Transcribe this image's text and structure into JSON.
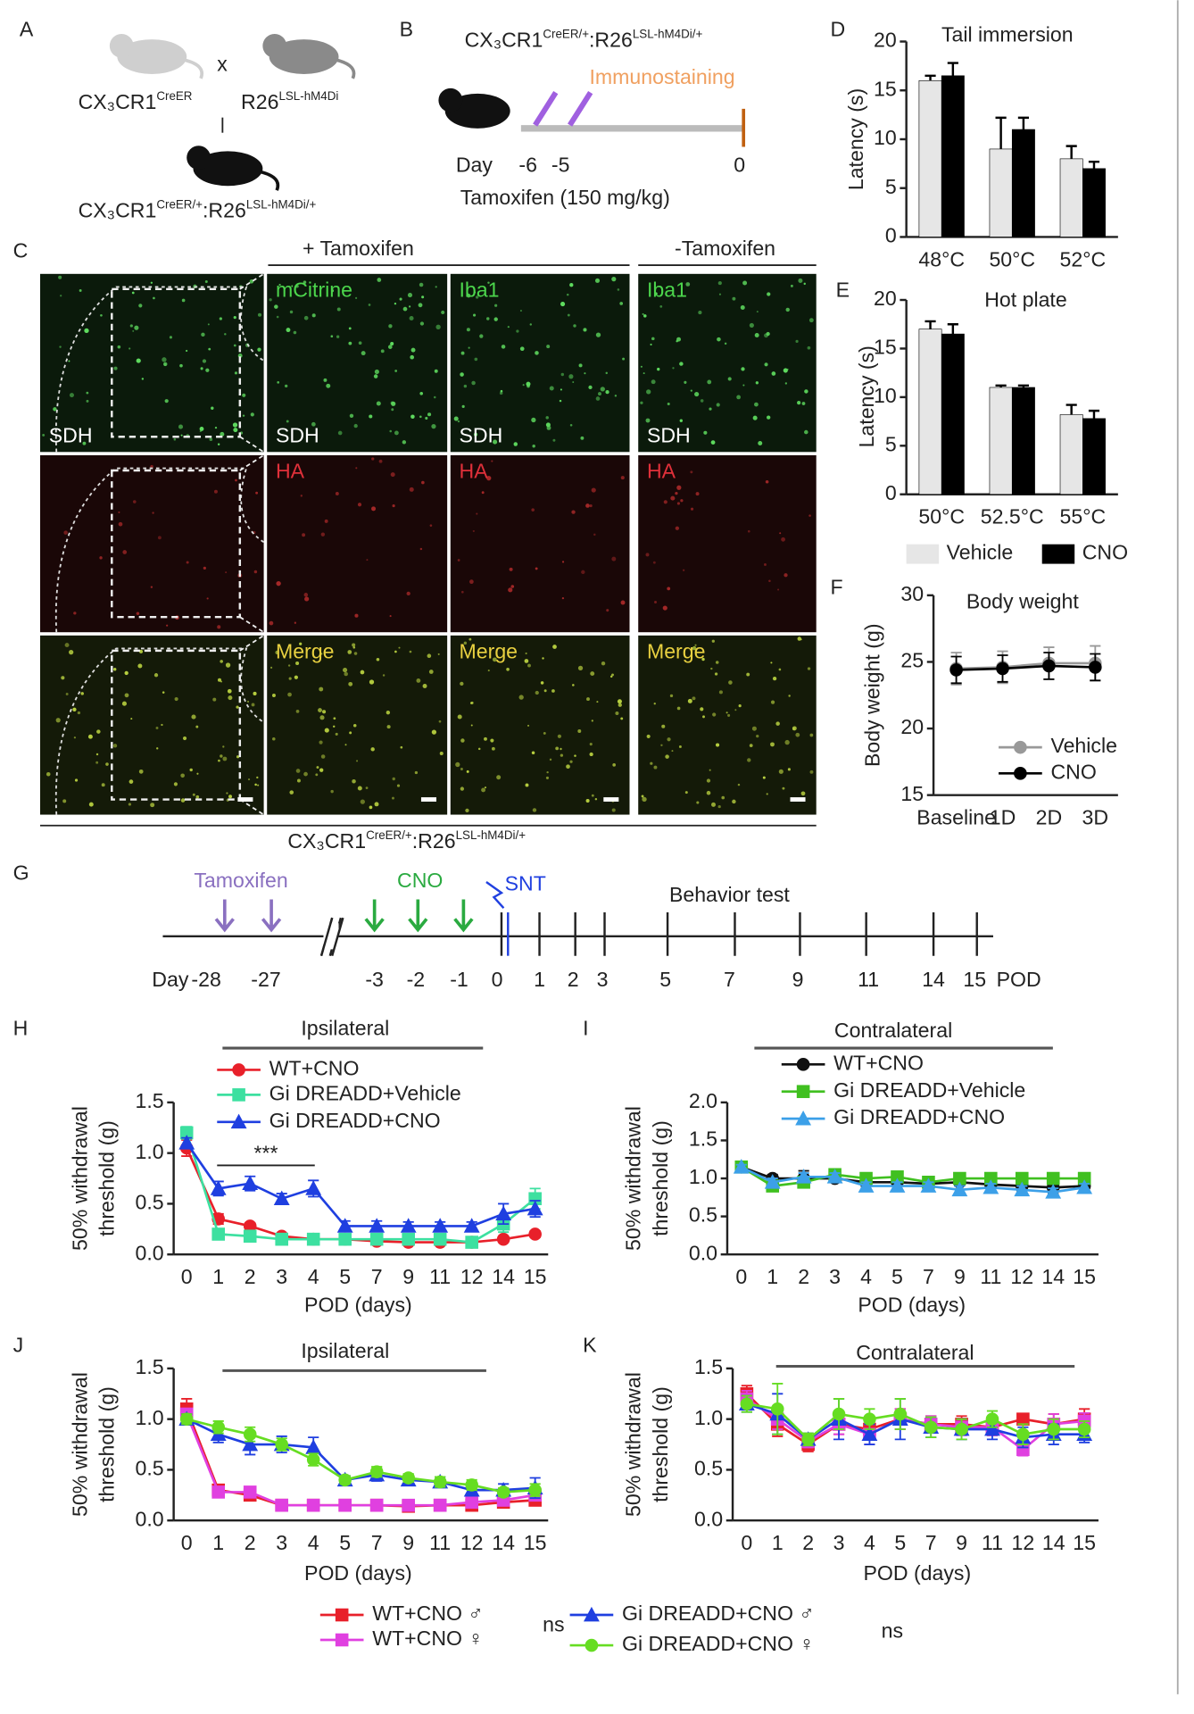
{
  "figure": {
    "panel_a": {
      "label": "A",
      "parent1": {
        "gene": "CX₃CR1",
        "allele": "CreER"
      },
      "cross": "x",
      "parent2": {
        "gene": "R26",
        "allele": "LSL-hM4Di"
      },
      "offspring": {
        "gene1": "CX₃CR1",
        "allele1": "CreER/+",
        "gene2": ":R26",
        "allele2": "LSL-hM4Di/+"
      }
    },
    "panel_b": {
      "label": "B",
      "genotype": {
        "gene1": "CX₃CR1",
        "allele1": "CreER/+",
        "gene2": ":R26",
        "allele2": "LSL-hM4Di/+"
      },
      "annotation": "Immunostaining",
      "day_label": "Day",
      "days": [
        "-6",
        "-5"
      ],
      "end_day": "0",
      "treatment": "Tamoxifen (150 mg/kg)"
    },
    "panel_c": {
      "label": "C",
      "group_plus": "+ Tamoxifen",
      "group_minus": "-Tamoxifen",
      "region": "SDH",
      "rows": [
        [
          "mCitrine",
          "Iba1",
          "Iba1"
        ],
        [
          "HA",
          "HA",
          "HA"
        ],
        [
          "Merge",
          "Merge",
          "Merge"
        ]
      ],
      "genotype": {
        "gene1": "CX₃CR1",
        "allele1": "CreER/+",
        "gene2": ":R26",
        "allele2": "LSL-hM4Di/+"
      }
    },
    "panel_g": {
      "label": "G",
      "tamoxifen": "Tamoxifen",
      "cno": "CNO",
      "snt": "SNT",
      "behavior": "Behavior test",
      "day_label": "Day",
      "days": [
        "-28",
        "-27",
        "-3",
        "-2",
        "-1",
        "0",
        "1",
        "2",
        "3",
        "5",
        "7",
        "9",
        "11",
        "14",
        "15"
      ],
      "unit": "POD"
    }
  },
  "chart_data": [
    {
      "panel": "D",
      "type": "bar",
      "title": "Tail immersion",
      "ylabel": [
        "Latency (s)"
      ],
      "categories": [
        "48°C",
        "50°C",
        "52°C"
      ],
      "ylim": [
        0,
        20
      ],
      "yticks": [
        0,
        5,
        10,
        15,
        20
      ],
      "series": [
        {
          "color": "#e6e6e6",
          "values": [
            16,
            9,
            8
          ],
          "errors": [
            0.5,
            3.2,
            1.3
          ]
        },
        {
          "color": "#000000",
          "values": [
            16.5,
            11,
            7
          ],
          "errors": [
            1.3,
            1.2,
            0.7
          ]
        }
      ]
    },
    {
      "panel": "E",
      "type": "bar",
      "title": "Hot plate",
      "ylabel": [
        "Latency (s)"
      ],
      "categories": [
        "50°C",
        "52.5°C",
        "55°C"
      ],
      "ylim": [
        0,
        20
      ],
      "yticks": [
        0,
        5,
        10,
        15,
        20
      ],
      "series": [
        {
          "name": "Vehicle",
          "color": "#e6e6e6",
          "values": [
            17,
            11,
            8.2
          ],
          "errors": [
            0.8,
            0.2,
            1
          ]
        },
        {
          "name": "CNO",
          "color": "#000000",
          "values": [
            16.5,
            11,
            7.8
          ],
          "errors": [
            1,
            0.2,
            0.8
          ]
        }
      ]
    },
    {
      "panel": "F",
      "type": "line",
      "title": "Body weight",
      "ylabel": [
        "Body weight (g)"
      ],
      "categories": [
        "Baseline",
        "1D",
        "2D",
        "3D"
      ],
      "ylim": [
        15,
        30
      ],
      "yticks": [
        15,
        20,
        25,
        30
      ],
      "series": [
        {
          "name": "Vehicle",
          "color": "#999999",
          "marker": "circle",
          "values": [
            24.5,
            24.6,
            24.9,
            24.9
          ],
          "errors": [
            1.2,
            1.2,
            1.2,
            1.3
          ]
        },
        {
          "name": "CNO",
          "color": "#000000",
          "marker": "circle",
          "values": [
            24.4,
            24.5,
            24.7,
            24.6
          ],
          "errors": [
            1,
            1,
            1,
            1
          ]
        }
      ]
    },
    {
      "panel": "H",
      "type": "line",
      "title": "Ipsilateral",
      "ylabel": [
        "50% withdrawal",
        "threshold (g)"
      ],
      "xlabel": "POD (days)",
      "annotation": "***",
      "categories": [
        0,
        1,
        2,
        3,
        4,
        5,
        7,
        9,
        11,
        12,
        14,
        15
      ],
      "ylim": [
        0,
        1.5
      ],
      "yticks": [
        {
          "value": 0,
          "label": "0.0"
        },
        {
          "value": 0.5,
          "label": "0.5"
        },
        {
          "value": 1,
          "label": "1.0"
        },
        {
          "value": 1.5,
          "label": "1.5"
        }
      ],
      "series": [
        {
          "name": "WT+CNO",
          "color": "#e8202a",
          "marker": "circle",
          "values": [
            1.05,
            0.35,
            0.28,
            0.18,
            0.15,
            0.15,
            0.13,
            0.12,
            0.12,
            0.12,
            0.15,
            0.2
          ],
          "errors": [
            0.08,
            0.05,
            0.03,
            0.02,
            0.02,
            0.02,
            0.02,
            0.02,
            0.02,
            0.02,
            0.03,
            0.03
          ]
        },
        {
          "name": "Gi DREADD+Vehicle",
          "color": "#3de0a0",
          "marker": "square",
          "values": [
            1.2,
            0.2,
            0.18,
            0.15,
            0.15,
            0.15,
            0.15,
            0.15,
            0.15,
            0.12,
            0.3,
            0.55
          ],
          "errors": [
            0.06,
            0.04,
            0.03,
            0.02,
            0.02,
            0.02,
            0.02,
            0.02,
            0.02,
            0.02,
            0.08,
            0.1
          ]
        },
        {
          "name": "Gi DREADD+CNO",
          "color": "#1f3fe0",
          "marker": "triangle",
          "values": [
            1.1,
            0.65,
            0.7,
            0.55,
            0.65,
            0.28,
            0.28,
            0.28,
            0.28,
            0.28,
            0.4,
            0.45
          ],
          "errors": [
            0.05,
            0.07,
            0.07,
            0.05,
            0.08,
            0.05,
            0.05,
            0.04,
            0.04,
            0.04,
            0.1,
            0.08
          ]
        }
      ]
    },
    {
      "panel": "I",
      "type": "line",
      "title": "Contralateral",
      "ylabel": [
        "50% withdrawal",
        "threshold (g)"
      ],
      "xlabel": "POD (days)",
      "categories": [
        0,
        1,
        2,
        3,
        4,
        5,
        7,
        9,
        11,
        12,
        14,
        15
      ],
      "ylim": [
        0,
        2
      ],
      "yticks": [
        {
          "value": 0,
          "label": "0.0"
        },
        {
          "value": 0.5,
          "label": "0.5"
        },
        {
          "value": 1,
          "label": "1.0"
        },
        {
          "value": 1.5,
          "label": "1.5"
        },
        {
          "value": 2,
          "label": "2.0"
        }
      ],
      "series": [
        {
          "name": "WT+CNO",
          "color": "#111111",
          "marker": "circle",
          "values": [
            1.15,
            1.0,
            1.0,
            1.0,
            0.95,
            0.95,
            0.93,
            0.95,
            0.92,
            0.9,
            0.88,
            0.9
          ],
          "errors": [
            0.05,
            0.05,
            0.1,
            0.05,
            0.05,
            0.05,
            0.06,
            0.05,
            0.05,
            0.06,
            0.08,
            0.05
          ]
        },
        {
          "name": "Gi DREADD+Vehicle",
          "color": "#40c020",
          "marker": "square",
          "values": [
            1.15,
            0.9,
            0.95,
            1.05,
            1.0,
            1.02,
            0.95,
            1.0,
            1.0,
            1.0,
            1.0,
            1.0
          ],
          "errors": [
            0.03,
            0.05,
            0.05,
            0.05,
            0.05,
            0.05,
            0.05,
            0.05,
            0.05,
            0.05,
            0.05,
            0.05
          ]
        },
        {
          "name": "Gi DREADD+CNO",
          "color": "#3ca0e8",
          "marker": "triangle",
          "values": [
            1.15,
            0.95,
            1.02,
            1.02,
            0.9,
            0.9,
            0.9,
            0.85,
            0.88,
            0.85,
            0.82,
            0.88
          ],
          "errors": [
            0.03,
            0.05,
            0.05,
            0.05,
            0.05,
            0.05,
            0.05,
            0.05,
            0.05,
            0.05,
            0.05,
            0.05
          ]
        }
      ]
    },
    {
      "panel": "J",
      "type": "line",
      "title": "Ipsilateral",
      "ylabel": [
        "50% withdrawal",
        "threshold (g)"
      ],
      "xlabel": "POD (days)",
      "legend_notes": [
        "ns",
        "ns"
      ],
      "categories": [
        0,
        1,
        2,
        3,
        4,
        5,
        7,
        9,
        11,
        12,
        14,
        15
      ],
      "ylim": [
        0,
        1.5
      ],
      "yticks": [
        {
          "value": 0,
          "label": "0.0"
        },
        {
          "value": 0.5,
          "label": "0.5"
        },
        {
          "value": 1,
          "label": "1.0"
        },
        {
          "value": 1.5,
          "label": "1.5"
        }
      ],
      "series": [
        {
          "name": "WT+CNO ♂",
          "color": "#e8202a",
          "marker": "square",
          "values": [
            1.1,
            0.3,
            0.25,
            0.15,
            0.15,
            0.15,
            0.15,
            0.14,
            0.15,
            0.15,
            0.18,
            0.2
          ],
          "errors": [
            0.1,
            0.05,
            0.05,
            0.02,
            0.02,
            0.02,
            0.02,
            0.02,
            0.02,
            0.02,
            0.03,
            0.03
          ]
        },
        {
          "name": "WT+CNO ♀",
          "color": "#e040e0",
          "marker": "square",
          "values": [
            1.05,
            0.28,
            0.28,
            0.15,
            0.15,
            0.15,
            0.15,
            0.15,
            0.15,
            0.18,
            0.2,
            0.25
          ],
          "errors": [
            0.05,
            0.05,
            0.05,
            0.02,
            0.02,
            0.02,
            0.02,
            0.02,
            0.02,
            0.03,
            0.03,
            0.04
          ]
        },
        {
          "name": "Gi DREADD+CNO ♂",
          "color": "#1f3fe0",
          "marker": "triangle",
          "values": [
            1.0,
            0.85,
            0.75,
            0.75,
            0.72,
            0.4,
            0.45,
            0.4,
            0.38,
            0.3,
            0.3,
            0.32
          ],
          "errors": [
            0.05,
            0.08,
            0.1,
            0.08,
            0.1,
            0.04,
            0.06,
            0.05,
            0.05,
            0.05,
            0.06,
            0.1
          ]
        },
        {
          "name": "Gi DREADD+CNO ♀",
          "color": "#66dd22",
          "marker": "circle",
          "values": [
            1.0,
            0.92,
            0.85,
            0.75,
            0.6,
            0.4,
            0.48,
            0.42,
            0.38,
            0.35,
            0.28,
            0.3
          ],
          "errors": [
            0.05,
            0.06,
            0.07,
            0.06,
            0.06,
            0.04,
            0.05,
            0.04,
            0.05,
            0.05,
            0.04,
            0.06
          ]
        }
      ]
    },
    {
      "panel": "K",
      "type": "line",
      "title": "Contralateral",
      "ylabel": [
        "50% withdrawal",
        "threshold (g)"
      ],
      "xlabel": "POD (days)",
      "categories": [
        0,
        1,
        2,
        3,
        4,
        5,
        7,
        9,
        11,
        12,
        14,
        15
      ],
      "ylim": [
        0,
        1.5
      ],
      "yticks": [
        {
          "value": 0,
          "label": "0.0"
        },
        {
          "value": 0.5,
          "label": "0.5"
        },
        {
          "value": 1,
          "label": "1.0"
        },
        {
          "value": 1.5,
          "label": "1.5"
        }
      ],
      "series": [
        {
          "color": "#e8202a",
          "marker": "square",
          "values": [
            1.25,
            0.95,
            0.75,
            0.95,
            0.9,
            1.0,
            0.95,
            0.95,
            0.92,
            1.0,
            0.95,
            1.0
          ],
          "errors": [
            0.08,
            0.12,
            0.07,
            0.1,
            0.1,
            0.1,
            0.08,
            0.08,
            0.08,
            0.05,
            0.1,
            0.1
          ]
        },
        {
          "color": "#e040e0",
          "marker": "square",
          "values": [
            1.2,
            1.0,
            0.78,
            0.95,
            0.85,
            1.0,
            0.95,
            0.92,
            0.92,
            0.7,
            0.95,
            0.98
          ],
          "errors": [
            0.08,
            0.1,
            0.06,
            0.1,
            0.1,
            0.1,
            0.08,
            0.08,
            0.08,
            0.06,
            0.1,
            0.08
          ]
        },
        {
          "color": "#1f3fe0",
          "marker": "triangle",
          "values": [
            1.15,
            1.05,
            0.8,
            1.0,
            0.85,
            1.0,
            0.92,
            0.9,
            0.9,
            0.82,
            0.85,
            0.85
          ],
          "errors": [
            0.08,
            0.2,
            0.06,
            0.2,
            0.1,
            0.2,
            0.1,
            0.1,
            0.1,
            0.1,
            0.1,
            0.08
          ]
        },
        {
          "color": "#66dd22",
          "marker": "circle",
          "values": [
            1.15,
            1.1,
            0.8,
            1.05,
            1.0,
            1.05,
            0.92,
            0.9,
            1.0,
            0.85,
            0.9,
            0.9
          ],
          "errors": [
            0.08,
            0.25,
            0.06,
            0.15,
            0.1,
            0.15,
            0.1,
            0.1,
            0.08,
            0.1,
            0.1,
            0.08
          ]
        }
      ]
    }
  ]
}
